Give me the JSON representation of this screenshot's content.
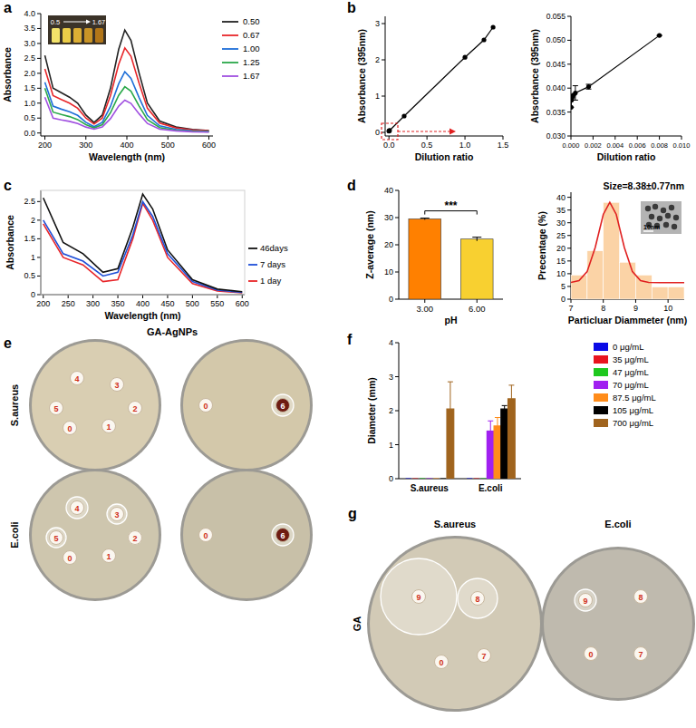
{
  "chart_data": [
    {
      "label": "a",
      "type": "line",
      "x_label": "Wavelength (nm)",
      "y_label": "Absorbance",
      "x": [
        200,
        220,
        240,
        260,
        280,
        300,
        320,
        340,
        360,
        380,
        395,
        410,
        430,
        450,
        480,
        520,
        560,
        600
      ],
      "series": [
        {
          "name": "0.50",
          "color": "#222222",
          "values": [
            2.6,
            1.5,
            1.35,
            1.2,
            1.0,
            0.6,
            0.35,
            0.6,
            1.5,
            2.8,
            3.45,
            3.1,
            2.0,
            1.0,
            0.4,
            0.2,
            0.12,
            0.08
          ]
        },
        {
          "name": "0.67",
          "color": "#e8262a",
          "values": [
            2.15,
            1.25,
            1.12,
            1.0,
            0.83,
            0.5,
            0.3,
            0.5,
            1.25,
            2.3,
            2.85,
            2.57,
            1.66,
            0.83,
            0.33,
            0.17,
            0.1,
            0.07
          ]
        },
        {
          "name": "1.00",
          "color": "#1f6fd8",
          "values": [
            1.7,
            0.9,
            0.8,
            0.71,
            0.59,
            0.36,
            0.21,
            0.36,
            0.89,
            1.65,
            2.05,
            1.83,
            1.18,
            0.59,
            0.24,
            0.12,
            0.07,
            0.05
          ]
        },
        {
          "name": "1.25",
          "color": "#2aa84a",
          "values": [
            1.5,
            0.7,
            0.62,
            0.55,
            0.45,
            0.28,
            0.17,
            0.28,
            0.68,
            1.26,
            1.55,
            1.4,
            0.9,
            0.45,
            0.18,
            0.09,
            0.06,
            0.04
          ]
        },
        {
          "name": "1.67",
          "color": "#a050e0",
          "values": [
            1.2,
            0.5,
            0.44,
            0.39,
            0.32,
            0.2,
            0.13,
            0.2,
            0.48,
            0.9,
            1.1,
            0.99,
            0.64,
            0.32,
            0.13,
            0.07,
            0.04,
            0.03
          ]
        }
      ],
      "xlim": [
        190,
        610
      ],
      "ylim": [
        -0.1,
        4.0
      ],
      "xticks": [
        200,
        300,
        400,
        500,
        600
      ],
      "yticks": [
        {
          "value": 0,
          "label": "0.0"
        },
        0.5,
        {
          "value": 1,
          "label": "1.0"
        },
        1.5,
        {
          "value": 2,
          "label": "2.0"
        },
        2.5,
        {
          "value": 3,
          "label": "3.0"
        },
        3.5,
        {
          "value": 4,
          "label": "4.0"
        }
      ],
      "legend": "right",
      "annotations": [
        "0.5",
        "1.67"
      ]
    },
    {
      "label": "b",
      "type": "line",
      "marker": "circle",
      "x_label": "Dilution ratio",
      "y_label": "Absorbance (395nm)",
      "x": [
        2e-05,
        0.0016,
        0.008,
        0.2,
        1.0,
        1.25,
        1.37
      ],
      "values": [
        0.036,
        0.0403,
        0.051,
        0.45,
        2.07,
        2.55,
        2.9
      ],
      "color": "#000000",
      "xlim": [
        -0.05,
        1.5
      ],
      "ylim": [
        -0.1,
        3.2
      ],
      "xticks": [
        {
          "value": 0,
          "label": "0.0"
        },
        {
          "value": 0.5,
          "label": "0.5"
        },
        {
          "value": 1,
          "label": "1.0"
        },
        {
          "value": 1.5,
          "label": "1.5"
        }
      ],
      "yticks": [
        0,
        1,
        2,
        3
      ]
    },
    {
      "type": "line",
      "marker": "circle",
      "x_label": "Dilution ratio",
      "y_label": "Absorbance (395nm)",
      "x": [
        2e-05,
        5e-05,
        0.0001,
        0.0002,
        0.0004,
        0.0016,
        0.008
      ],
      "values": [
        0.036,
        0.0375,
        0.038,
        0.0385,
        0.039,
        0.0403,
        0.051
      ],
      "errors": [
        0,
        0,
        0,
        0,
        0.0015,
        0.0005,
        0
      ],
      "color": "#000000",
      "xlim": [
        0,
        0.01
      ],
      "ylim": [
        0.03,
        0.055
      ],
      "xticks": [
        {
          "value": 0,
          "label": "0.000"
        },
        {
          "value": 0.002,
          "label": "0.002"
        },
        {
          "value": 0.004,
          "label": "0.004"
        },
        {
          "value": 0.006,
          "label": "0.006"
        },
        {
          "value": 0.008,
          "label": "0.008"
        },
        {
          "value": 0.01,
          "label": "0.010"
        }
      ],
      "yticks": [
        {
          "value": 0.03,
          "label": "0.030"
        },
        {
          "value": 0.035,
          "label": "0.035"
        },
        {
          "value": 0.04,
          "label": "0.040"
        },
        {
          "value": 0.045,
          "label": "0.045"
        },
        {
          "value": 0.05,
          "label": "0.050"
        },
        {
          "value": 0.055,
          "label": "0.055"
        }
      ]
    },
    {
      "label": "c",
      "type": "line",
      "x_label": "Wavelength (nm)",
      "y_label": "Absorbance",
      "x": [
        200,
        240,
        280,
        320,
        350,
        380,
        400,
        420,
        450,
        500,
        550,
        600
      ],
      "series": [
        {
          "name": "1 day",
          "color": "#e8262a",
          "values": [
            1.9,
            1.0,
            0.8,
            0.35,
            0.4,
            1.5,
            2.45,
            2.0,
            1.0,
            0.3,
            0.1,
            0.05
          ]
        },
        {
          "name": "7 days",
          "color": "#1f4fd8",
          "values": [
            2.0,
            1.1,
            0.9,
            0.5,
            0.6,
            1.6,
            2.5,
            2.1,
            1.1,
            0.35,
            0.12,
            0.06
          ]
        },
        {
          "name": "46days",
          "color": "#111111",
          "values": [
            2.6,
            1.4,
            1.1,
            0.6,
            0.7,
            1.8,
            2.7,
            2.3,
            1.2,
            0.4,
            0.15,
            0.08
          ]
        }
      ],
      "xlim": [
        195,
        605
      ],
      "ylim": [
        0,
        2.8
      ],
      "xticks": [
        200,
        250,
        300,
        350,
        400,
        450,
        500,
        550,
        600
      ],
      "yticks": [
        0,
        0.5,
        1,
        1.5,
        2,
        2.5
      ]
    },
    {
      "label": "d",
      "type": "bar",
      "x_label": "pH",
      "y_label": "Z-average (nm)",
      "categories": [
        "3.00",
        "6.00"
      ],
      "values": [
        29.5,
        22.1
      ],
      "errors": [
        0.3,
        0.7
      ],
      "colors": [
        "#ff8000",
        "#f8d030"
      ],
      "ylim": [
        0,
        40
      ],
      "yticks": [
        0,
        10,
        20,
        30,
        40
      ],
      "annotations": [
        "***"
      ]
    },
    {
      "type": "histogram",
      "title": "Size=8.38±0.77nm",
      "x_label": "Particluar Diammeter (nm)",
      "y_label": "Precentage (%)",
      "bins": [
        7,
        7.5,
        8,
        8.5,
        9,
        9.5,
        10,
        10.5
      ],
      "values": [
        9.5,
        19,
        38,
        14.5,
        9.5,
        4.8,
        4.8
      ],
      "color": "#fbd3a6",
      "fit": {
        "x": [
          7,
          7.25,
          7.5,
          7.75,
          8.0,
          8.2,
          8.4,
          8.65,
          8.9,
          9.15,
          9.4,
          9.75,
          10.5
        ],
        "values": [
          6.6,
          7.3,
          10.8,
          20.3,
          33.3,
          38,
          33.3,
          20.3,
          10.8,
          7.3,
          6.6,
          6.5,
          6.5
        ],
        "color": "#e02020"
      },
      "xlim": [
        7,
        10.5
      ],
      "ylim": [
        0,
        42
      ],
      "xticks": [
        7,
        8,
        9,
        10
      ],
      "yticks": [
        0,
        5,
        10,
        15,
        20,
        25,
        30,
        35,
        40
      ],
      "annotations": [
        "10nm"
      ]
    },
    {
      "label": "f",
      "type": "bar",
      "y_label": "Diameter (mm)",
      "categories": [
        "S.aureus",
        "E.coli"
      ],
      "series": [
        {
          "name": "0 μg/mL",
          "color": "#0a0ae6",
          "values": [
            0,
            0
          ],
          "errors": [
            0,
            0
          ]
        },
        {
          "name": "35 μg/mL",
          "color": "#e8141e",
          "values": [
            0,
            0
          ],
          "errors": [
            0,
            0
          ]
        },
        {
          "name": "47 μg/mL",
          "color": "#1ec81e",
          "values": [
            0,
            0
          ],
          "errors": [
            0,
            0
          ]
        },
        {
          "name": "70 μg/mL",
          "color": "#a020f0",
          "values": [
            0,
            1.4
          ],
          "errors": [
            0,
            0.3
          ]
        },
        {
          "name": "87.5 μg/mL",
          "color": "#ff8c1a",
          "values": [
            0,
            1.55
          ],
          "errors": [
            0,
            0.25
          ]
        },
        {
          "name": "105 μg/mL",
          "color": "#000000",
          "values": [
            0,
            2.05
          ],
          "errors": [
            0,
            0.1
          ]
        },
        {
          "name": "700 μg/mL",
          "color": "#a0641e",
          "values": [
            2.05,
            2.35
          ],
          "errors": [
            0.8,
            0.4
          ]
        }
      ],
      "ylim": [
        0,
        4
      ],
      "yticks": [
        0,
        1,
        2,
        3,
        4
      ],
      "legend": "right"
    }
  ],
  "photos": [
    {
      "label": "e",
      "title": "GA-AgNPs",
      "rows": [
        "S.aureus",
        "E.coli"
      ],
      "plates": [
        [
          [
            "4",
            "3",
            "5",
            "2",
            "0",
            "1"
          ],
          [
            "0",
            "6"
          ]
        ],
        [
          [
            "4",
            "3",
            "5",
            "2",
            "0",
            "1"
          ],
          [
            "0",
            "6"
          ]
        ]
      ]
    },
    {
      "label": "g",
      "row": "GA",
      "columns": [
        "S.aureus",
        "E.coli"
      ],
      "plates": [
        [
          "9",
          "8",
          "0",
          "7"
        ],
        [
          "9",
          "8",
          "0",
          "7"
        ]
      ]
    }
  ]
}
